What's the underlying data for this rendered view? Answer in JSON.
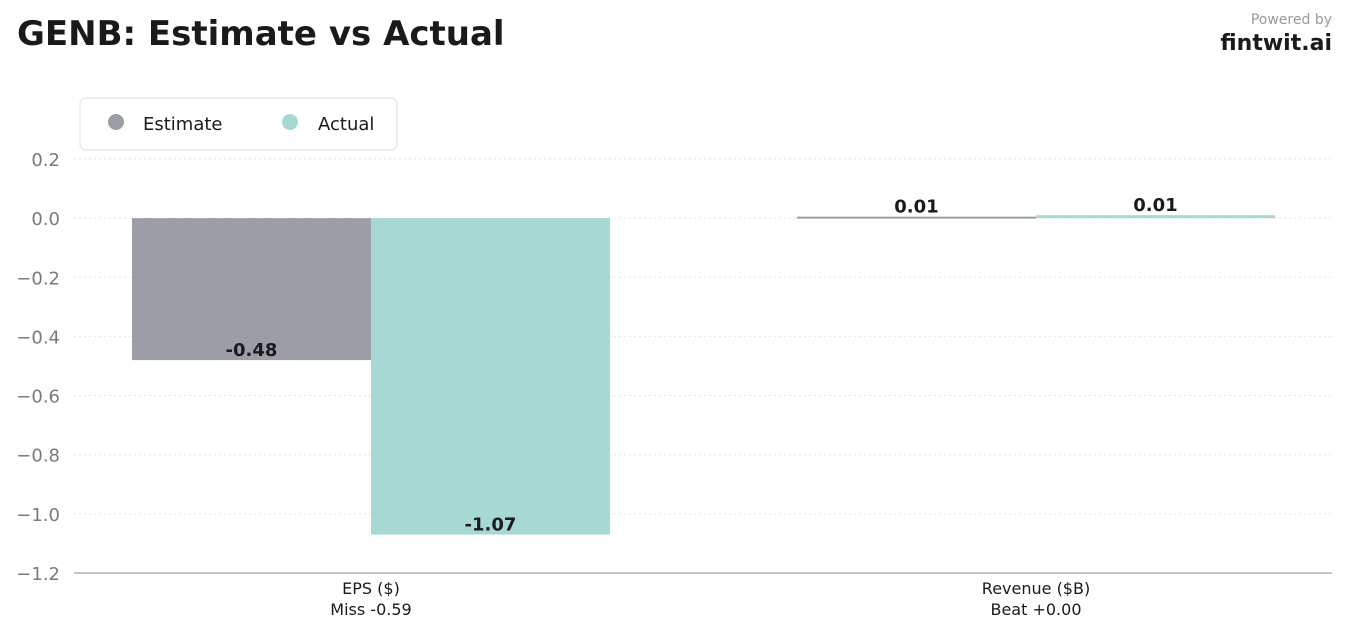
{
  "header": {
    "title": "GENB: Estimate vs Actual",
    "powered_by": "Powered by",
    "brand": "fintwit.ai"
  },
  "colors": {
    "estimate": "#9b9ea5",
    "actual": "#a8d8d4",
    "grid": "#e6e6e6",
    "axis": "#b0b0b0"
  },
  "chart_data": {
    "type": "bar",
    "title": "GENB: Estimate vs Actual",
    "categories": [
      "EPS ($)",
      "Revenue ($B)"
    ],
    "category_notes": [
      "Miss -0.59",
      "Beat +0.00"
    ],
    "series": [
      {
        "name": "Estimate",
        "values": [
          -0.48,
          0.005
        ],
        "labels": [
          "-0.48",
          "0.01"
        ]
      },
      {
        "name": "Actual",
        "values": [
          -1.07,
          0.01
        ],
        "labels": [
          "-1.07",
          "0.01"
        ]
      }
    ],
    "ylim": [
      -1.2,
      0.2
    ],
    "yticks": [
      "0.2",
      "0.0",
      "−0.2",
      "−0.4",
      "−0.6",
      "−0.8",
      "−1.0",
      "−1.2"
    ],
    "ytick_values": [
      0.2,
      0.0,
      -0.2,
      -0.4,
      -0.6,
      -0.8,
      -1.0,
      -1.2
    ],
    "grid": true,
    "legend_position": "top-left"
  }
}
